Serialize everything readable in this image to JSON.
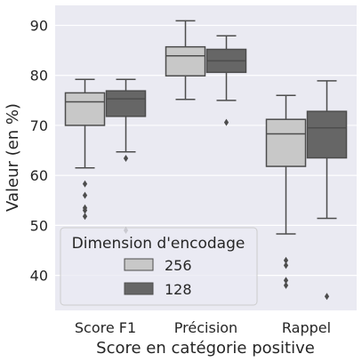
{
  "chart_data": {
    "type": "box",
    "xlabel": "Score en catégorie positive",
    "ylabel": "Valeur (en %)",
    "ylim": [
      33,
      94
    ],
    "yticks": [
      40,
      50,
      60,
      70,
      80,
      90
    ],
    "grid": true,
    "legend_position": "lower-left",
    "legend_title": "Dimension d'encodage",
    "categories": [
      "Score F1",
      "Précision",
      "Rappel"
    ],
    "series": [
      {
        "name": "256",
        "color": "#c8c8c8",
        "boxes": [
          {
            "whisker_low": 61.5,
            "q1": 70.0,
            "median": 74.7,
            "q3": 76.5,
            "whisker_high": 79.2,
            "outliers": [
              58.3,
              56.0,
              53.5,
              53.0,
              51.8
            ]
          },
          {
            "whisker_low": 75.2,
            "q1": 79.9,
            "median": 83.9,
            "q3": 85.7,
            "whisker_high": 90.9,
            "outliers": []
          },
          {
            "whisker_low": 48.3,
            "q1": 61.8,
            "median": 68.3,
            "q3": 71.2,
            "whisker_high": 76.0,
            "outliers": [
              43.0,
              42.0,
              39.0,
              38.0
            ]
          }
        ]
      },
      {
        "name": "128",
        "color": "#666666",
        "boxes": [
          {
            "whisker_low": 64.7,
            "q1": 71.8,
            "median": 75.3,
            "q3": 76.9,
            "whisker_high": 79.2,
            "outliers": [
              63.4,
              49.0
            ]
          },
          {
            "whisker_low": 75.0,
            "q1": 80.6,
            "median": 82.9,
            "q3": 85.2,
            "whisker_high": 87.9,
            "outliers": [
              70.6
            ]
          },
          {
            "whisker_low": 51.4,
            "q1": 63.5,
            "median": 69.5,
            "q3": 72.8,
            "whisker_high": 78.9,
            "outliers": [
              35.8
            ]
          }
        ]
      }
    ]
  }
}
